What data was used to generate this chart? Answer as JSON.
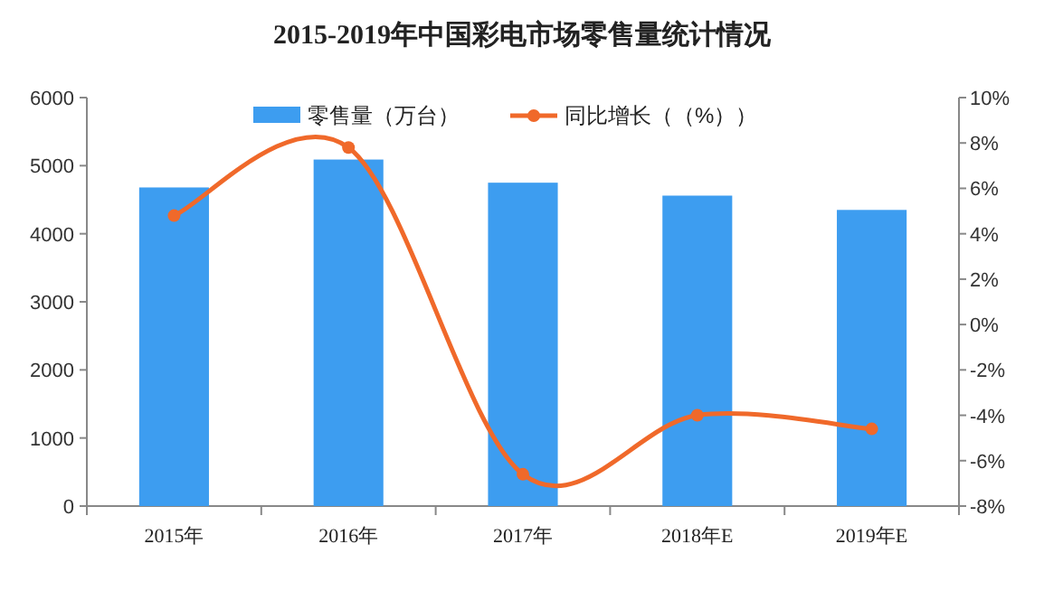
{
  "chart_data": {
    "type": "bar",
    "title": "2015-2019年中国彩电市场零售量统计情况",
    "categories": [
      "2015年",
      "2016年",
      "2017年",
      "2018年E",
      "2019年E"
    ],
    "series": [
      {
        "name": "零售量（万台）",
        "color": "#3d9df0",
        "values": [
          4680,
          5090,
          4750,
          4560,
          4350
        ]
      },
      {
        "name": "同比增长（（%））",
        "type": "line",
        "axis": "y2",
        "color": "#f0692a",
        "values": [
          4.8,
          7.8,
          -6.6,
          -4.0,
          -4.6
        ]
      }
    ],
    "ylim": [
      0,
      6000
    ],
    "yticks": [
      0,
      1000,
      2000,
      3000,
      4000,
      5000,
      6000
    ],
    "y2lim": [
      -8,
      10
    ],
    "y2ticks": [
      {
        "value": -8,
        "label": "-8%"
      },
      {
        "value": -6,
        "label": "-6%"
      },
      {
        "value": -4,
        "label": "-4%"
      },
      {
        "value": -2,
        "label": "-2%"
      },
      {
        "value": 0,
        "label": "0%"
      },
      {
        "value": 2,
        "label": "2%"
      },
      {
        "value": 4,
        "label": "4%"
      },
      {
        "value": 6,
        "label": "6%"
      },
      {
        "value": 8,
        "label": "8%"
      },
      {
        "value": 10,
        "label": "10%"
      }
    ],
    "legend": "top",
    "marker": "circle"
  }
}
